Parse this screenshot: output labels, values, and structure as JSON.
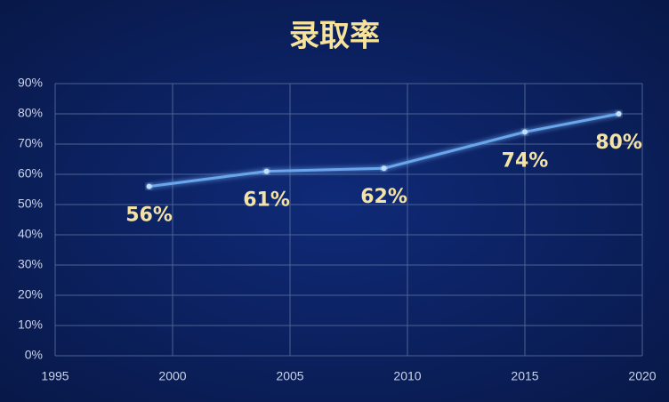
{
  "chart_data": {
    "type": "line",
    "title": "录取率",
    "x": [
      1999,
      2004,
      2009,
      2015,
      2019
    ],
    "series": [
      {
        "name": "录取率",
        "color": "#6aa6ec",
        "values": [
          56,
          61,
          62,
          74,
          80
        ],
        "value_labels": [
          "56%",
          "61%",
          "62%",
          "74%",
          "80%"
        ]
      }
    ],
    "xlim": [
      1995,
      2020
    ],
    "xticks": [
      1995,
      2000,
      2005,
      2010,
      2015,
      2020
    ],
    "ylim": [
      0,
      90
    ],
    "yticks": [
      {
        "value": 0,
        "label": "0%"
      },
      {
        "value": 10,
        "label": "10%"
      },
      {
        "value": 20,
        "label": "20%"
      },
      {
        "value": 30,
        "label": "30%"
      },
      {
        "value": 40,
        "label": "40%"
      },
      {
        "value": 50,
        "label": "50%"
      },
      {
        "value": 60,
        "label": "60%"
      },
      {
        "value": 70,
        "label": "70%"
      },
      {
        "value": 80,
        "label": "80%"
      },
      {
        "value": 90,
        "label": "90%"
      }
    ],
    "grid": true
  }
}
